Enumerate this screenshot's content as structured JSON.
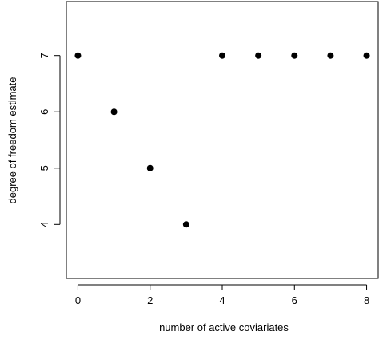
{
  "chart_data": {
    "type": "scatter",
    "title": "",
    "xlabel": "number of active coviariates",
    "ylabel": "degree of freedom estimate",
    "xlim": [
      -0.32,
      8.32
    ],
    "ylim": [
      3.04,
      7.96
    ],
    "xticks": [
      0,
      2,
      4,
      6,
      8
    ],
    "yticks": [
      4,
      5,
      6,
      7
    ],
    "grid": false,
    "legend": "none",
    "marker_color": "#000000",
    "series": [
      {
        "x": [
          0,
          1,
          2,
          3,
          4,
          5,
          6,
          7,
          8
        ],
        "y": [
          7,
          6,
          5,
          4,
          7,
          7,
          7,
          7,
          7
        ]
      }
    ]
  }
}
